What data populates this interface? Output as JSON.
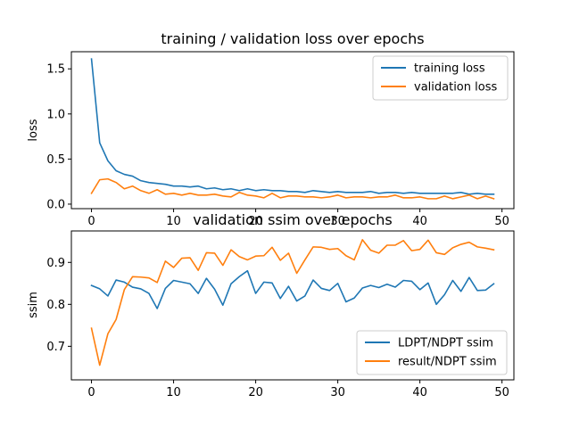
{
  "chart_data": [
    {
      "type": "line",
      "title": "training / validation loss over epochs",
      "xlabel": "",
      "ylabel": "loss",
      "xlim": [
        -2.45,
        51.45
      ],
      "ylim": [
        -0.05,
        1.69
      ],
      "xticks": [
        0,
        10,
        20,
        30,
        40,
        50
      ],
      "yticks": [
        0.0,
        0.5,
        1.0,
        1.5
      ],
      "ytick_labels": [
        "0.0",
        "0.5",
        "1.0",
        "1.5"
      ],
      "legend_position": "upper right",
      "x": [
        0,
        1,
        2,
        3,
        4,
        5,
        6,
        7,
        8,
        9,
        10,
        11,
        12,
        13,
        14,
        15,
        16,
        17,
        18,
        19,
        20,
        21,
        22,
        23,
        24,
        25,
        26,
        27,
        28,
        29,
        30,
        31,
        32,
        33,
        34,
        35,
        36,
        37,
        38,
        39,
        40,
        41,
        42,
        43,
        44,
        45,
        46,
        47,
        48,
        49
      ],
      "series": [
        {
          "name": "training loss",
          "color": "#1f77b4",
          "values": [
            1.61,
            0.68,
            0.48,
            0.37,
            0.33,
            0.31,
            0.26,
            0.24,
            0.23,
            0.22,
            0.2,
            0.2,
            0.19,
            0.2,
            0.17,
            0.18,
            0.16,
            0.17,
            0.15,
            0.17,
            0.15,
            0.16,
            0.15,
            0.15,
            0.14,
            0.14,
            0.13,
            0.15,
            0.14,
            0.13,
            0.14,
            0.13,
            0.13,
            0.13,
            0.14,
            0.12,
            0.13,
            0.13,
            0.12,
            0.13,
            0.12,
            0.12,
            0.12,
            0.12,
            0.12,
            0.13,
            0.11,
            0.12,
            0.11,
            0.11
          ]
        },
        {
          "name": "validation loss",
          "color": "#ff7f0e",
          "values": [
            0.12,
            0.27,
            0.28,
            0.24,
            0.17,
            0.2,
            0.15,
            0.12,
            0.16,
            0.11,
            0.12,
            0.1,
            0.12,
            0.1,
            0.1,
            0.11,
            0.09,
            0.08,
            0.13,
            0.1,
            0.09,
            0.07,
            0.12,
            0.07,
            0.09,
            0.09,
            0.08,
            0.08,
            0.07,
            0.08,
            0.1,
            0.07,
            0.08,
            0.08,
            0.07,
            0.08,
            0.08,
            0.1,
            0.07,
            0.07,
            0.08,
            0.06,
            0.06,
            0.09,
            0.06,
            0.08,
            0.1,
            0.06,
            0.09,
            0.06
          ]
        }
      ]
    },
    {
      "type": "line",
      "title": "validation ssim over epochs",
      "xlabel": "",
      "ylabel": "ssim",
      "xlim": [
        -2.45,
        51.45
      ],
      "ylim": [
        0.62,
        0.975
      ],
      "xticks": [
        0,
        10,
        20,
        30,
        40,
        50
      ],
      "yticks": [
        0.7,
        0.8,
        0.9
      ],
      "ytick_labels": [
        "0.7",
        "0.8",
        "0.9"
      ],
      "legend_position": "lower right",
      "x": [
        0,
        1,
        2,
        3,
        4,
        5,
        6,
        7,
        8,
        9,
        10,
        11,
        12,
        13,
        14,
        15,
        16,
        17,
        18,
        19,
        20,
        21,
        22,
        23,
        24,
        25,
        26,
        27,
        28,
        29,
        30,
        31,
        32,
        33,
        34,
        35,
        36,
        37,
        38,
        39,
        40,
        41,
        42,
        43,
        44,
        45,
        46,
        47,
        48,
        49
      ],
      "series": [
        {
          "name": "LDPT/NDPT ssim",
          "color": "#1f77b4",
          "values": [
            0.845,
            0.837,
            0.82,
            0.858,
            0.853,
            0.841,
            0.837,
            0.826,
            0.79,
            0.838,
            0.857,
            0.853,
            0.849,
            0.826,
            0.862,
            0.836,
            0.798,
            0.849,
            0.866,
            0.88,
            0.826,
            0.853,
            0.851,
            0.814,
            0.843,
            0.808,
            0.82,
            0.858,
            0.838,
            0.833,
            0.85,
            0.806,
            0.815,
            0.839,
            0.845,
            0.84,
            0.848,
            0.841,
            0.857,
            0.855,
            0.835,
            0.851,
            0.8,
            0.823,
            0.857,
            0.831,
            0.864,
            0.833,
            0.834,
            0.849
          ]
        },
        {
          "name": "result/NDPT ssim",
          "color": "#ff7f0e",
          "values": [
            0.743,
            0.655,
            0.73,
            0.764,
            0.835,
            0.866,
            0.865,
            0.863,
            0.852,
            0.903,
            0.888,
            0.91,
            0.911,
            0.881,
            0.923,
            0.922,
            0.893,
            0.93,
            0.914,
            0.906,
            0.915,
            0.916,
            0.936,
            0.905,
            0.922,
            0.874,
            0.906,
            0.937,
            0.936,
            0.931,
            0.933,
            0.916,
            0.906,
            0.954,
            0.929,
            0.922,
            0.941,
            0.941,
            0.952,
            0.928,
            0.931,
            0.953,
            0.923,
            0.919,
            0.935,
            0.943,
            0.948,
            0.937,
            0.934,
            0.93
          ]
        }
      ]
    }
  ]
}
